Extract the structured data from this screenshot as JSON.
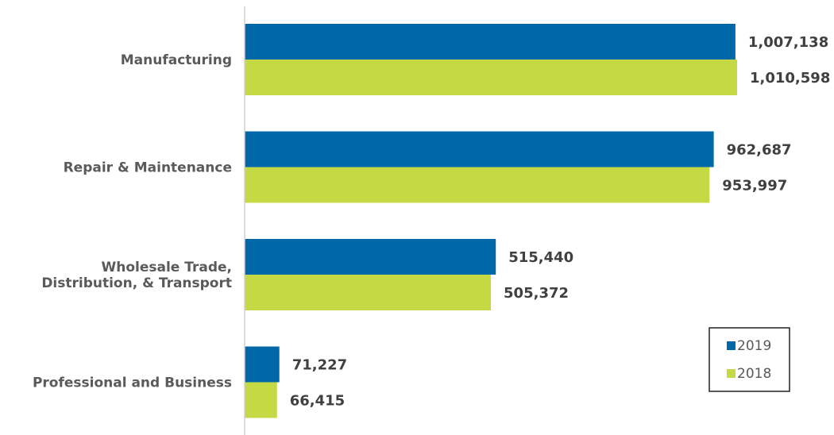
{
  "chart_data": {
    "type": "bar",
    "orientation": "horizontal",
    "title": "",
    "xlabel": "",
    "ylabel": "",
    "categories": [
      "Manufacturing",
      "Repair & Maintenance",
      "Wholesale Trade,\nDistribution, & Transport",
      "Professional and Business"
    ],
    "series": [
      {
        "name": "2019",
        "color": "#0067a8",
        "values": [
          1007138,
          962687,
          515440,
          71227
        ],
        "labels": [
          "1,007,138",
          "962,687",
          "515,440",
          "71,227"
        ]
      },
      {
        "name": "2018",
        "color": "#c5d944",
        "values": [
          1010598,
          953997,
          505372,
          66415
        ],
        "labels": [
          "1,010,598",
          "953,997",
          "505,372",
          "66,415"
        ]
      }
    ],
    "xlim": [
      0,
      1100000
    ],
    "grid": false,
    "legend_position": "bottom-right"
  }
}
